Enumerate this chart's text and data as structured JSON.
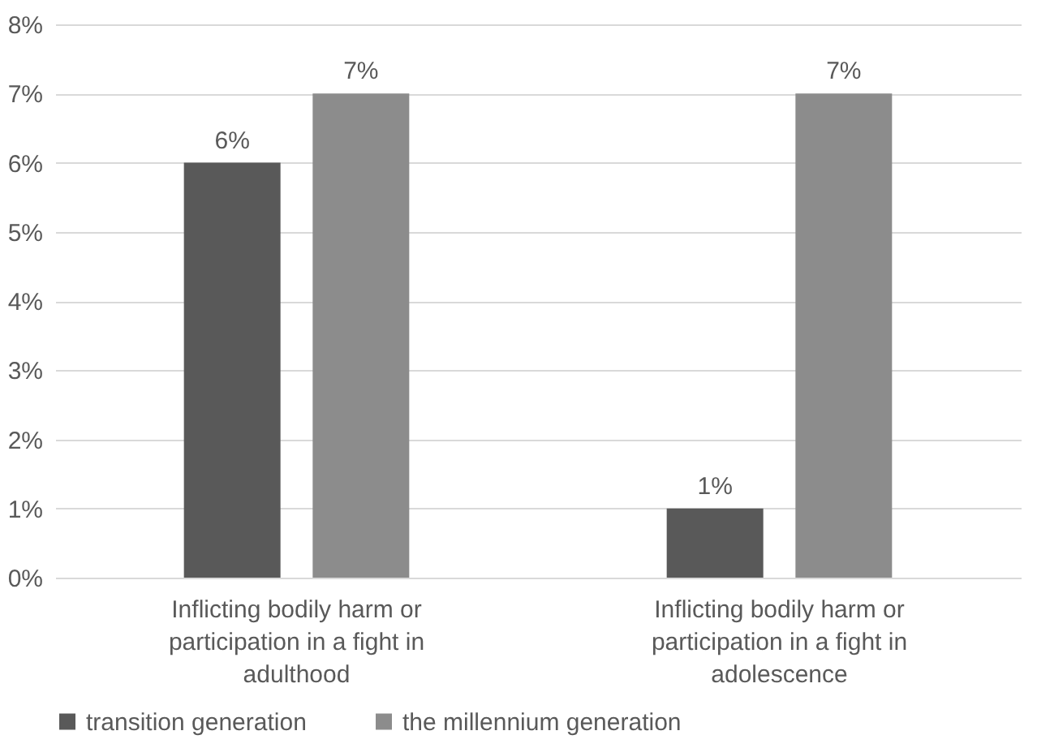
{
  "chart_data": {
    "type": "bar",
    "categories": [
      "Inflicting bodily harm or participation in a fight in adulthood",
      "Inflicting bodily harm or participation in a fight in adolescence"
    ],
    "series": [
      {
        "name": "transition generation",
        "color": "#595959",
        "values": [
          6,
          1
        ],
        "value_labels": [
          "6%",
          "1%"
        ]
      },
      {
        "name": "the millennium generation",
        "color": "#8c8c8c",
        "values": [
          7,
          7
        ],
        "value_labels": [
          "7%",
          "7%"
        ]
      }
    ],
    "ylim": [
      0,
      8
    ],
    "yticks": [
      {
        "value": 0,
        "label": "0%"
      },
      {
        "value": 1,
        "label": "1%"
      },
      {
        "value": 2,
        "label": "2%"
      },
      {
        "value": 3,
        "label": "3%"
      },
      {
        "value": 4,
        "label": "4%"
      },
      {
        "value": 5,
        "label": "5%"
      },
      {
        "value": 6,
        "label": "6%"
      },
      {
        "value": 7,
        "label": "7%"
      },
      {
        "value": 8,
        "label": "8%"
      }
    ],
    "grid": "y",
    "legend": "bottom"
  }
}
